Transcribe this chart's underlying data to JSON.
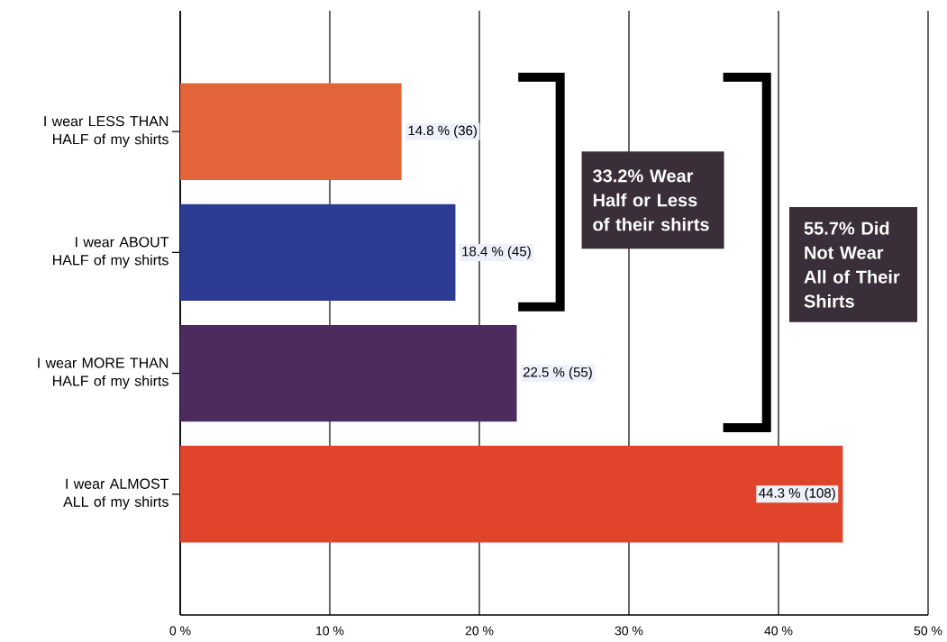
{
  "chart_data": {
    "type": "bar",
    "orientation": "horizontal",
    "categories": [
      "I wear LESS THAN HALF of my shirts",
      "I wear ABOUT HALF of my shirts",
      "I wear MORE THAN HALF of my shirts",
      "I wear ALMOST ALL of my shirts"
    ],
    "values": [
      14.8,
      18.4,
      22.5,
      44.3
    ],
    "colors": [
      "#e4643a",
      "#2d3a93",
      "#4d2b5e",
      "#e0452c"
    ],
    "value_labels": [
      "14.8 % (36)",
      "18.4 % (45)",
      "22.5 % (55)",
      "44.3 % (108)"
    ],
    "xlim": [
      0,
      50
    ],
    "xticks": [
      {
        "value": 0,
        "label": "0 %"
      },
      {
        "value": 10,
        "label": "10 %"
      },
      {
        "value": 20,
        "label": "20 %"
      },
      {
        "value": 30,
        "label": "30 %"
      },
      {
        "value": 40,
        "label": "40 %"
      },
      {
        "value": 50,
        "label": "50 %"
      }
    ],
    "grid": "x",
    "annotations": [
      "33.2% Wear Half or Less of their shirts",
      "55.7% Did Not Wear All of Their Shirts"
    ]
  }
}
